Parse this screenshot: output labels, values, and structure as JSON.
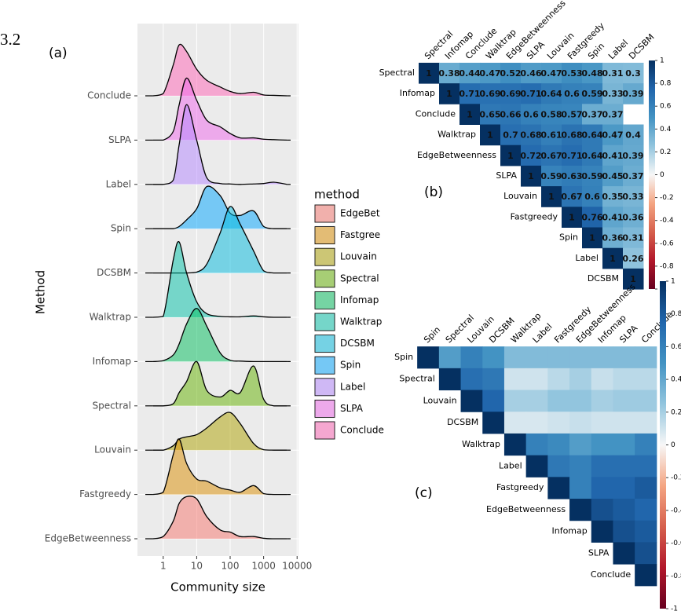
{
  "chart_data": [
    {
      "type": "ridgeline",
      "section_fragment": "3.2",
      "panel_label": "(a)",
      "xlabel": "Community size",
      "ylabel": "Method",
      "xscale": "log",
      "xlim": [
        0.17,
        11000
      ],
      "xticks": [
        1,
        10,
        100,
        1000,
        10000
      ],
      "grid": true,
      "legend_title": "method",
      "opacity": 0.5,
      "categories": [
        "EdgeBetweenness",
        "Fastgreedy",
        "Louvain",
        "Spectral",
        "Infomap",
        "Walktrap",
        "DCSBM",
        "Spin",
        "Label",
        "SLPA",
        "Conclude"
      ],
      "x": [
        0.5,
        1,
        2,
        3,
        5,
        10,
        20,
        50,
        100,
        200,
        500,
        1000,
        2000,
        5000
      ],
      "series": [
        {
          "name": "EdgeBet",
          "color": "#F8766D",
          "values": [
            0,
            0.05,
            0.4,
            0.8,
            0.95,
            0.9,
            0.5,
            0.2,
            0.15,
            0.05,
            0.05,
            0.01,
            0,
            0
          ]
        },
        {
          "name": "Fastgree",
          "color": "#DB8E00",
          "values": [
            0,
            0.05,
            0.9,
            1.25,
            0.7,
            0.35,
            0.3,
            0.15,
            0.1,
            0.05,
            0.2,
            0.02,
            0,
            0
          ]
        },
        {
          "name": "Louvain",
          "color": "#AEA200",
          "values": [
            0,
            0,
            0.1,
            0.25,
            0.3,
            0.35,
            0.5,
            0.75,
            0.85,
            0.6,
            0.15,
            0.01,
            0,
            0
          ]
        },
        {
          "name": "Spectral",
          "color": "#64B200",
          "values": [
            0,
            0,
            0.05,
            0.3,
            0.55,
            1.0,
            0.35,
            0.2,
            0.35,
            0.3,
            0.9,
            0.15,
            0,
            0
          ]
        },
        {
          "name": "Infomap",
          "color": "#00BD5C",
          "values": [
            0,
            0.02,
            0.15,
            0.4,
            0.85,
            1.2,
            0.8,
            0.2,
            0.03,
            0.01,
            0,
            0,
            0,
            0
          ]
        },
        {
          "name": "Walktrap",
          "color": "#00C1A7",
          "values": [
            0,
            0.02,
            1.3,
            1.7,
            1.0,
            0.35,
            0.08,
            0.02,
            0.01,
            0.01,
            0.03,
            0.01,
            0,
            0
          ]
        },
        {
          "name": "DCSBM",
          "color": "#00BADE",
          "values": [
            0,
            0,
            0,
            0,
            0,
            0.02,
            0.2,
            0.9,
            1.5,
            1.1,
            0.5,
            0.05,
            0,
            0
          ]
        },
        {
          "name": "Spin",
          "color": "#00A6FF",
          "values": [
            0,
            0,
            0,
            0.05,
            0.2,
            0.45,
            0.95,
            0.75,
            0.35,
            0.3,
            0.4,
            0.05,
            0,
            0
          ]
        },
        {
          "name": "Label",
          "color": "#B385FF",
          "values": [
            0,
            0,
            0.1,
            0.9,
            1.8,
            1.0,
            0.15,
            0.02,
            0.01,
            0,
            0.01,
            0.02,
            0.05,
            0
          ]
        },
        {
          "name": "SLPA",
          "color": "#EF67EB",
          "values": [
            0,
            0,
            0.2,
            0.8,
            1.4,
            0.9,
            0.45,
            0.3,
            0.15,
            0.05,
            0.05,
            0.02,
            0.01,
            0
          ]
        },
        {
          "name": "Conclude",
          "color": "#FF63B6",
          "values": [
            0,
            0.05,
            0.7,
            1.15,
            1.0,
            0.6,
            0.35,
            0.2,
            0.1,
            0.05,
            0.08,
            0.02,
            0.01,
            0
          ]
        }
      ]
    },
    {
      "type": "heatmap",
      "panel_label": "(b)",
      "show_values": true,
      "categories": [
        "Spectral",
        "Infomap",
        "Conclude",
        "Walktrap",
        "EdgeBetweenness",
        "SLPA",
        "Louvain",
        "Fastgreedy",
        "Spin",
        "Label",
        "DCSBM"
      ],
      "values": [
        [
          1,
          0.38,
          0.44,
          0.47,
          0.52,
          0.46,
          0.47,
          0.53,
          0.48,
          0.31,
          0.3
        ],
        [
          null,
          1,
          0.71,
          0.69,
          0.69,
          0.71,
          0.64,
          0.6,
          0.59,
          0.33,
          0.39
        ],
        [
          null,
          null,
          1,
          0.65,
          0.66,
          0.6,
          0.58,
          0.57,
          0.37,
          0.37,
          null
        ],
        [
          null,
          null,
          null,
          1,
          0.7,
          0.68,
          0.61,
          0.68,
          0.64,
          0.47,
          0.4
        ],
        [
          null,
          null,
          null,
          null,
          1,
          0.72,
          0.67,
          0.71,
          0.64,
          0.41,
          0.39
        ],
        [
          null,
          null,
          null,
          null,
          null,
          1,
          0.59,
          0.63,
          0.59,
          0.45,
          0.37
        ],
        [
          null,
          null,
          null,
          null,
          null,
          null,
          1,
          0.67,
          0.6,
          0.35,
          0.33
        ],
        [
          null,
          null,
          null,
          null,
          null,
          null,
          null,
          1,
          0.76,
          0.41,
          0.36
        ],
        [
          null,
          null,
          null,
          null,
          null,
          null,
          null,
          null,
          1,
          0.36,
          0.31
        ],
        [
          null,
          null,
          null,
          null,
          null,
          null,
          null,
          null,
          null,
          1,
          0.26
        ],
        [
          null,
          null,
          null,
          null,
          null,
          null,
          null,
          null,
          null,
          null,
          1
        ]
      ],
      "clim": [
        -1,
        1
      ],
      "cticks": [
        1,
        0.8,
        0.6,
        0.4,
        0.2,
        0,
        -0.2,
        -0.4,
        -0.6,
        -0.8,
        -1
      ],
      "colorscale": [
        "#67001f",
        "#b2182b",
        "#d6604d",
        "#f4a582",
        "#f7f7f7",
        "#92c5de",
        "#4393c3",
        "#2166ac",
        "#053061"
      ]
    },
    {
      "type": "heatmap",
      "panel_label": "(c)",
      "show_values": false,
      "categories": [
        "Spin",
        "Spectral",
        "Louvain",
        "DCSBM",
        "Walktrap",
        "Label",
        "Fastgreedy",
        "EdgeBetweenness",
        "Infomap",
        "SLPA",
        "Conclude"
      ],
      "values": [
        [
          1,
          0.45,
          0.6,
          0.5,
          0.3,
          0.3,
          0.3,
          0.3,
          0.3,
          0.3,
          0.3
        ],
        [
          null,
          1,
          0.7,
          0.65,
          0.1,
          0.1,
          0.15,
          0.2,
          0.12,
          0.15,
          0.15
        ],
        [
          null,
          null,
          1,
          0.75,
          0.2,
          0.2,
          0.25,
          0.25,
          0.2,
          0.22,
          0.22
        ],
        [
          null,
          null,
          null,
          1,
          0.08,
          0.08,
          0.1,
          0.12,
          0.1,
          0.1,
          0.1
        ],
        [
          null,
          null,
          null,
          null,
          1,
          0.6,
          0.55,
          0.45,
          0.5,
          0.5,
          0.6
        ],
        [
          null,
          null,
          null,
          null,
          null,
          1,
          0.65,
          0.6,
          0.7,
          0.7,
          0.7
        ],
        [
          null,
          null,
          null,
          null,
          null,
          null,
          1,
          0.6,
          0.75,
          0.75,
          0.8
        ],
        [
          null,
          null,
          null,
          null,
          null,
          null,
          null,
          1,
          0.85,
          0.8,
          0.75
        ],
        [
          null,
          null,
          null,
          null,
          null,
          null,
          null,
          null,
          1,
          0.85,
          0.8
        ],
        [
          null,
          null,
          null,
          null,
          null,
          null,
          null,
          null,
          null,
          1,
          0.85
        ],
        [
          null,
          null,
          null,
          null,
          null,
          null,
          null,
          null,
          null,
          null,
          1
        ]
      ],
      "clim": [
        -1,
        1
      ],
      "cticks": [
        1,
        0.8,
        0.6,
        0.4,
        0.2,
        0,
        -0.2,
        -0.4,
        -0.6,
        -0.8,
        -1
      ],
      "colorscale": [
        "#67001f",
        "#b2182b",
        "#d6604d",
        "#f4a582",
        "#f7f7f7",
        "#92c5de",
        "#4393c3",
        "#2166ac",
        "#053061"
      ]
    }
  ]
}
